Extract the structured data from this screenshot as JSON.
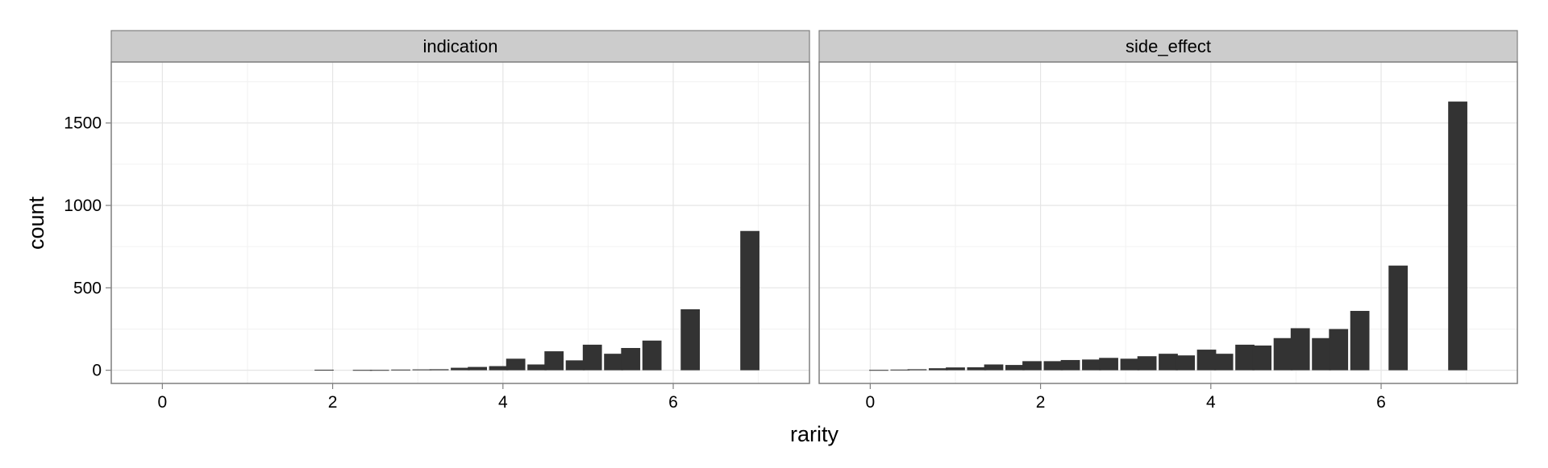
{
  "chart_data": {
    "type": "bar",
    "xlabel": "rarity",
    "ylabel": "count",
    "xlim": [
      -0.6,
      7.6
    ],
    "ylim": [
      -80,
      1870
    ],
    "x_ticks": [
      0,
      2,
      4,
      6
    ],
    "y_ticks": [
      0,
      500,
      1000,
      1500
    ],
    "bin_width": 0.225,
    "grid": true,
    "panels": [
      {
        "name": "indication",
        "bins": [
          {
            "x": 1.9,
            "count": 3
          },
          {
            "x": 2.35,
            "count": 2
          },
          {
            "x": 2.55,
            "count": 2
          },
          {
            "x": 2.8,
            "count": 4
          },
          {
            "x": 3.05,
            "count": 5
          },
          {
            "x": 3.25,
            "count": 6
          },
          {
            "x": 3.5,
            "count": 15
          },
          {
            "x": 3.7,
            "count": 20
          },
          {
            "x": 3.95,
            "count": 25
          },
          {
            "x": 4.15,
            "count": 70
          },
          {
            "x": 4.4,
            "count": 35
          },
          {
            "x": 4.6,
            "count": 115
          },
          {
            "x": 4.85,
            "count": 60
          },
          {
            "x": 5.05,
            "count": 155
          },
          {
            "x": 5.3,
            "count": 100
          },
          {
            "x": 5.5,
            "count": 135
          },
          {
            "x": 5.75,
            "count": 180
          },
          {
            "x": 6.2,
            "count": 370
          },
          {
            "x": 6.9,
            "count": 845
          }
        ]
      },
      {
        "name": "side_effect",
        "bins": [
          {
            "x": 0.1,
            "count": 2
          },
          {
            "x": 0.35,
            "count": 4
          },
          {
            "x": 0.55,
            "count": 6
          },
          {
            "x": 0.8,
            "count": 12
          },
          {
            "x": 1.0,
            "count": 17
          },
          {
            "x": 1.25,
            "count": 18
          },
          {
            "x": 1.45,
            "count": 35
          },
          {
            "x": 1.7,
            "count": 32
          },
          {
            "x": 1.9,
            "count": 55
          },
          {
            "x": 2.15,
            "count": 55
          },
          {
            "x": 2.35,
            "count": 62
          },
          {
            "x": 2.6,
            "count": 65
          },
          {
            "x": 2.8,
            "count": 75
          },
          {
            "x": 3.05,
            "count": 70
          },
          {
            "x": 3.25,
            "count": 85
          },
          {
            "x": 3.5,
            "count": 100
          },
          {
            "x": 3.7,
            "count": 90
          },
          {
            "x": 3.95,
            "count": 125
          },
          {
            "x": 4.15,
            "count": 100
          },
          {
            "x": 4.4,
            "count": 155
          },
          {
            "x": 4.6,
            "count": 150
          },
          {
            "x": 4.85,
            "count": 195
          },
          {
            "x": 5.05,
            "count": 255
          },
          {
            "x": 5.3,
            "count": 195
          },
          {
            "x": 5.5,
            "count": 250
          },
          {
            "x": 5.75,
            "count": 360
          },
          {
            "x": 6.2,
            "count": 635
          },
          {
            "x": 6.9,
            "count": 1630
          }
        ]
      }
    ]
  }
}
